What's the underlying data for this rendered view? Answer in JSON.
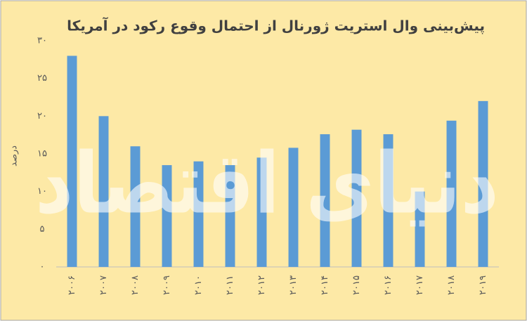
{
  "chart_data": {
    "type": "bar",
    "title": "پیش‌بینی وال استریت ژورنال از احتمال وقوع رکود در آمریکا",
    "y_label": "درصد",
    "watermark": "دنیای اقتصاد",
    "categories": [
      "۲۰۰۶",
      "۲۰۰۷",
      "۲۰۰۸",
      "۲۰۰۹",
      "۲۰۱۰",
      "۲۰۱۱",
      "۲۰۱۲",
      "۲۰۱۳",
      "۲۰۱۴",
      "۲۰۱۵",
      "۲۰۱۶",
      "۲۰۱۷",
      "۲۰۱۸",
      "۲۰۱۹"
    ],
    "values": [
      28,
      20,
      16,
      13.5,
      14,
      13.5,
      14.5,
      15.8,
      17.6,
      18.2,
      17.6,
      10,
      19.4,
      22
    ],
    "color": "#5b9bd5",
    "ylim": [
      0,
      30
    ],
    "yticks": [
      {
        "value": 0,
        "label": "۰"
      },
      {
        "value": 5,
        "label": "۵"
      },
      {
        "value": 10,
        "label": "۱۰"
      },
      {
        "value": 15,
        "label": "۱۵"
      },
      {
        "value": 20,
        "label": "۲۰"
      },
      {
        "value": 25,
        "label": "۲۵"
      },
      {
        "value": 30,
        "label": "۳۰"
      }
    ],
    "grid": false
  }
}
